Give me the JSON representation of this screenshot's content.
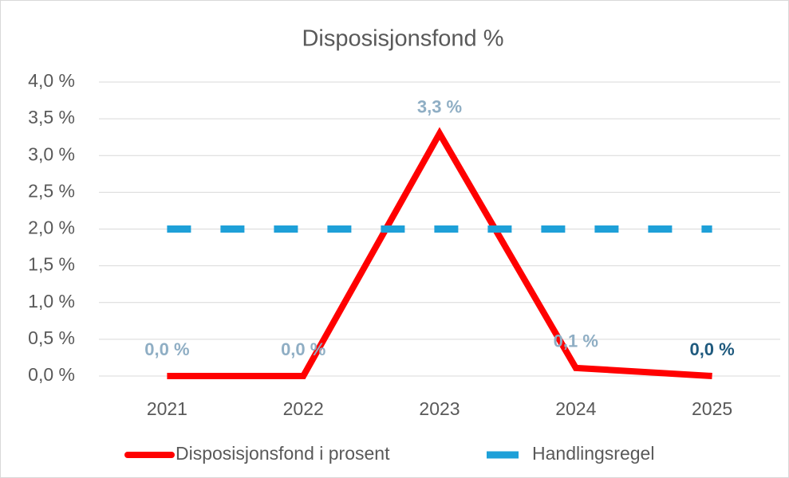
{
  "chart_data": {
    "type": "line",
    "title": "Disposisjonsfond %",
    "categories": [
      "2021",
      "2022",
      "2023",
      "2024",
      "2025"
    ],
    "series": [
      {
        "name": "Disposisjonsfond i prosent",
        "color": "#ff0000",
        "dash": false,
        "values": [
          0,
          0,
          3.3,
          0.11,
          0
        ],
        "value_labels": [
          "0,0 %",
          "0,0 %",
          "3,3 %",
          "0,1 %",
          "0,0 %"
        ],
        "value_label_colors": [
          "#8faec4",
          "#8faec4",
          "#8faec4",
          "#8faec4",
          "#1f5a7e"
        ]
      },
      {
        "name": "Handlingsregel",
        "color": "#1ea0d8",
        "dash": true,
        "values": [
          2,
          2,
          2,
          2,
          2
        ]
      }
    ],
    "ylim": [
      0,
      4
    ],
    "yticks": [
      {
        "value": 0,
        "label": "0,0 %"
      },
      {
        "value": 0.5,
        "label": "0,5 %"
      },
      {
        "value": 1,
        "label": "1,0 %"
      },
      {
        "value": 1.5,
        "label": "1,5 %"
      },
      {
        "value": 2,
        "label": "2,0 %"
      },
      {
        "value": 2.5,
        "label": "2,5 %"
      },
      {
        "value": 3,
        "label": "3,0 %"
      },
      {
        "value": 3.5,
        "label": "3,5 %"
      },
      {
        "value": 4,
        "label": "4,0 %"
      }
    ],
    "grid": true,
    "legend": "bottom"
  }
}
